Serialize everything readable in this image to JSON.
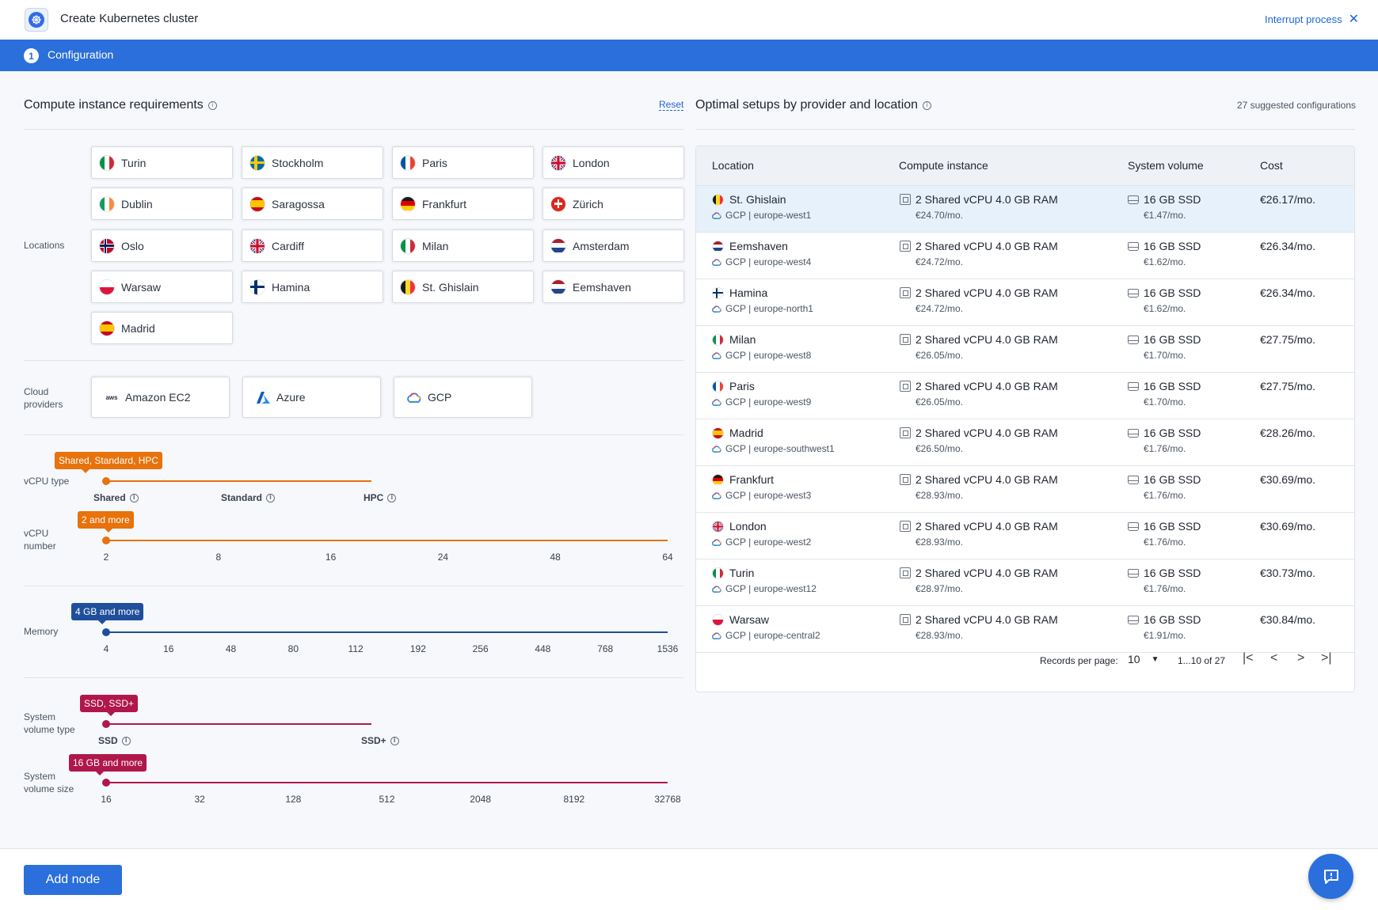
{
  "header": {
    "title": "Create Kubernetes cluster",
    "interrupt_label": "Interrupt process"
  },
  "steps": [
    {
      "number": "1",
      "label": "Configuration"
    }
  ],
  "requirements": {
    "title": "Compute instance requirements",
    "reset_label": "Reset",
    "locations_label": "Locations",
    "locations": [
      {
        "name": "Turin",
        "flag": "it"
      },
      {
        "name": "Stockholm",
        "flag": "se"
      },
      {
        "name": "Paris",
        "flag": "fr"
      },
      {
        "name": "London",
        "flag": "gb"
      },
      {
        "name": "Dublin",
        "flag": "ie"
      },
      {
        "name": "Saragossa",
        "flag": "es"
      },
      {
        "name": "Frankfurt",
        "flag": "de"
      },
      {
        "name": "Zürich",
        "flag": "ch"
      },
      {
        "name": "Oslo",
        "flag": "no"
      },
      {
        "name": "Cardiff",
        "flag": "gb"
      },
      {
        "name": "Milan",
        "flag": "it"
      },
      {
        "name": "Amsterdam",
        "flag": "nl"
      },
      {
        "name": "Warsaw",
        "flag": "pl"
      },
      {
        "name": "Hamina",
        "flag": "fi"
      },
      {
        "name": "St. Ghislain",
        "flag": "be"
      },
      {
        "name": "Eemshaven",
        "flag": "nl"
      },
      {
        "name": "Madrid",
        "flag": "es"
      }
    ],
    "providers_label_1": "Cloud",
    "providers_label_2": "providers",
    "providers": [
      {
        "name": "Amazon EC2",
        "icon": "aws-icon",
        "icon_text": "aws"
      },
      {
        "name": "Azure",
        "icon": "azure-icon"
      },
      {
        "name": "GCP",
        "icon": "gcp-cloud-icon"
      }
    ],
    "vcpu_type": {
      "label": "vCPU type",
      "badge": "Shared, Standard, HPC",
      "options": [
        "Shared",
        "Standard",
        "HPC"
      ]
    },
    "vcpu_number": {
      "label_1": "vCPU",
      "label_2": "number",
      "badge": "2 and more",
      "ticks": [
        "2",
        "8",
        "16",
        "24",
        "48",
        "64"
      ]
    },
    "memory": {
      "label": "Memory",
      "badge": "4 GB and more",
      "ticks": [
        "4",
        "16",
        "48",
        "80",
        "112",
        "192",
        "256",
        "448",
        "768",
        "1536"
      ]
    },
    "volume_type": {
      "label_1": "System",
      "label_2": "volume type",
      "badge": "SSD, SSD+",
      "options": [
        "SSD",
        "SSD+"
      ]
    },
    "volume_size": {
      "label_1": "System",
      "label_2": "volume size",
      "badge": "16 GB and more",
      "ticks": [
        "16",
        "32",
        "128",
        "512",
        "2048",
        "8192",
        "32768"
      ]
    }
  },
  "setups": {
    "title": "Optimal setups by provider and location",
    "count_label": "27 suggested configurations",
    "columns": [
      "Location",
      "Compute instance",
      "System volume",
      "Cost"
    ],
    "rows": [
      {
        "location": "St. Ghislain",
        "flag": "be",
        "region": "GCP | europe-west1",
        "instance": "2 Shared vCPU 4.0 GB RAM",
        "instance_price": "€24.70/mo.",
        "volume": "16 GB SSD",
        "volume_price": "€1.47/mo.",
        "cost": "€26.17/mo.",
        "selected": true
      },
      {
        "location": "Eemshaven",
        "flag": "nl",
        "region": "GCP | europe-west4",
        "instance": "2 Shared vCPU 4.0 GB RAM",
        "instance_price": "€24.72/mo.",
        "volume": "16 GB SSD",
        "volume_price": "€1.62/mo.",
        "cost": "€26.34/mo."
      },
      {
        "location": "Hamina",
        "flag": "fi",
        "region": "GCP | europe-north1",
        "instance": "2 Shared vCPU 4.0 GB RAM",
        "instance_price": "€24.72/mo.",
        "volume": "16 GB SSD",
        "volume_price": "€1.62/mo.",
        "cost": "€26.34/mo."
      },
      {
        "location": "Milan",
        "flag": "it",
        "region": "GCP | europe-west8",
        "instance": "2 Shared vCPU 4.0 GB RAM",
        "instance_price": "€26.05/mo.",
        "volume": "16 GB SSD",
        "volume_price": "€1.70/mo.",
        "cost": "€27.75/mo."
      },
      {
        "location": "Paris",
        "flag": "fr",
        "region": "GCP | europe-west9",
        "instance": "2 Shared vCPU 4.0 GB RAM",
        "instance_price": "€26.05/mo.",
        "volume": "16 GB SSD",
        "volume_price": "€1.70/mo.",
        "cost": "€27.75/mo."
      },
      {
        "location": "Madrid",
        "flag": "es",
        "region": "GCP | europe-southwest1",
        "instance": "2 Shared vCPU 4.0 GB RAM",
        "instance_price": "€26.50/mo.",
        "volume": "16 GB SSD",
        "volume_price": "€1.76/mo.",
        "cost": "€28.26/mo."
      },
      {
        "location": "Frankfurt",
        "flag": "de",
        "region": "GCP | europe-west3",
        "instance": "2 Shared vCPU 4.0 GB RAM",
        "instance_price": "€28.93/mo.",
        "volume": "16 GB SSD",
        "volume_price": "€1.76/mo.",
        "cost": "€30.69/mo."
      },
      {
        "location": "London",
        "flag": "gb",
        "region": "GCP | europe-west2",
        "instance": "2 Shared vCPU 4.0 GB RAM",
        "instance_price": "€28.93/mo.",
        "volume": "16 GB SSD",
        "volume_price": "€1.76/mo.",
        "cost": "€30.69/mo."
      },
      {
        "location": "Turin",
        "flag": "it",
        "region": "GCP | europe-west12",
        "instance": "2 Shared vCPU 4.0 GB RAM",
        "instance_price": "€28.97/mo.",
        "volume": "16 GB SSD",
        "volume_price": "€1.76/mo.",
        "cost": "€30.73/mo."
      },
      {
        "location": "Warsaw",
        "flag": "pl",
        "region": "GCP | europe-central2",
        "instance": "2 Shared vCPU 4.0 GB RAM",
        "instance_price": "€28.93/mo.",
        "volume": "16 GB SSD",
        "volume_price": "€1.91/mo.",
        "cost": "€30.84/mo."
      }
    ],
    "pager": {
      "records_label": "Records per page:",
      "per_page": "10",
      "range": "1...10 of 27"
    }
  },
  "footer": {
    "add_node_label": "Add node"
  },
  "colors": {
    "primary": "#2a6fdb",
    "orange": "#e8720c",
    "navy": "#1f4f9c",
    "crimson": "#b0174a"
  }
}
